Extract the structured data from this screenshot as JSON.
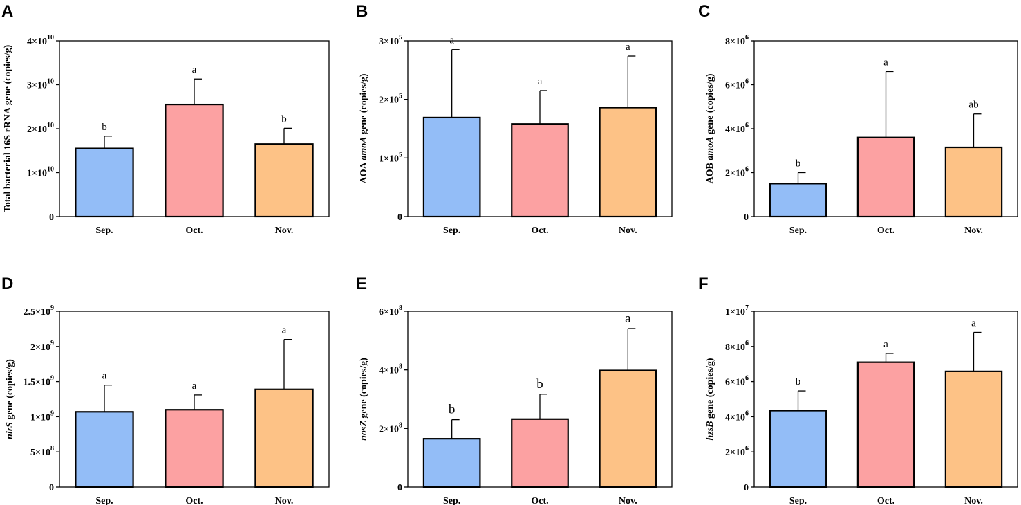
{
  "chart_data": [
    {
      "type": "bar",
      "panel": "A",
      "categories": [
        "Sep.",
        "Oct.",
        "Nov."
      ],
      "values": [
        15500000000.0,
        25500000000.0,
        16500000000.0
      ],
      "errors": [
        2800000000.0,
        5800000000.0,
        3600000000.0
      ],
      "significance": [
        "b",
        "a",
        "b"
      ],
      "ylabel_parts": [
        {
          "text": "Total bacterial 16S rRNA gene (copies/g)",
          "italic": false
        }
      ],
      "ylim": [
        0,
        40000000000.0
      ],
      "yticks": [
        0,
        10000000000.0,
        20000000000.0,
        30000000000.0,
        40000000000.0
      ],
      "ytick_labels": [
        {
          "mant": "0",
          "exp": ""
        },
        {
          "mant": "1×10",
          "exp": "10"
        },
        {
          "mant": "2×10",
          "exp": "10"
        },
        {
          "mant": "3×10",
          "exp": "10"
        },
        {
          "mant": "4×10",
          "exp": "10"
        }
      ]
    },
    {
      "type": "bar",
      "panel": "B",
      "categories": [
        "Sep.",
        "Oct.",
        "Nov."
      ],
      "values": [
        169000.0,
        158000.0,
        186000.0
      ],
      "errors": [
        116000.0,
        57000.0,
        88000.0
      ],
      "significance": [
        "a",
        "a",
        "a"
      ],
      "ylabel_parts": [
        {
          "text": "AOA  ",
          "italic": false
        },
        {
          "text": "amoA",
          "italic": true
        },
        {
          "text": " gene (copies/g)",
          "italic": false
        }
      ],
      "ylim": [
        0,
        300000.0
      ],
      "yticks": [
        0,
        100000.0,
        200000.0,
        300000.0
      ],
      "ytick_labels": [
        {
          "mant": "0",
          "exp": ""
        },
        {
          "mant": "1×10",
          "exp": "5"
        },
        {
          "mant": "2×10",
          "exp": "5"
        },
        {
          "mant": "3×10",
          "exp": "5"
        }
      ]
    },
    {
      "type": "bar",
      "panel": "C",
      "categories": [
        "Sep.",
        "Oct.",
        "Nov."
      ],
      "values": [
        1500000.0,
        3600000.0,
        3150000.0
      ],
      "errors": [
        500000.0,
        3000000.0,
        1520000.0
      ],
      "significance": [
        "b",
        "a",
        "ab"
      ],
      "ylabel_parts": [
        {
          "text": "AOB ",
          "italic": false
        },
        {
          "text": "amoA",
          "italic": true
        },
        {
          "text": " gene (copies/g)",
          "italic": false
        }
      ],
      "ylim": [
        0,
        8000000.0
      ],
      "yticks": [
        0,
        2000000.0,
        4000000.0,
        6000000.0,
        8000000.0
      ],
      "ytick_labels": [
        {
          "mant": "0",
          "exp": ""
        },
        {
          "mant": "2×10",
          "exp": "6"
        },
        {
          "mant": "4×10",
          "exp": "6"
        },
        {
          "mant": "6×10",
          "exp": "6"
        },
        {
          "mant": "8×10",
          "exp": "6"
        }
      ]
    },
    {
      "type": "bar",
      "panel": "D",
      "categories": [
        "Sep.",
        "Oct.",
        "Nov."
      ],
      "values": [
        1070000000.0,
        1100000000.0,
        1390000000.0
      ],
      "errors": [
        380000000.0,
        210000000.0,
        710000000.0
      ],
      "significance": [
        "a",
        "a",
        "a"
      ],
      "ylabel_parts": [
        {
          "text": "nirS",
          "italic": true
        },
        {
          "text": "  gene (copies/g)",
          "italic": false
        }
      ],
      "ylim": [
        0,
        2500000000.0
      ],
      "yticks": [
        0,
        500000000.0,
        1000000000.0,
        1500000000.0,
        2000000000.0,
        2500000000.0
      ],
      "ytick_labels": [
        {
          "mant": "0",
          "exp": ""
        },
        {
          "mant": "5×10",
          "exp": "8"
        },
        {
          "mant": "1×10",
          "exp": "9"
        },
        {
          "mant": "1.5×10",
          "exp": "9"
        },
        {
          "mant": "2×10",
          "exp": "9"
        },
        {
          "mant": "2.5×10",
          "exp": "9"
        }
      ]
    },
    {
      "type": "bar",
      "panel": "E",
      "categories": [
        "Sep.",
        "Oct.",
        "Nov."
      ],
      "values": [
        165000000.0,
        232000000.0,
        398000000.0
      ],
      "errors": [
        65000000.0,
        85000000.0,
        143000000.0
      ],
      "significance": [
        "b",
        "b",
        "a"
      ],
      "ylabel_parts": [
        {
          "text": "nosZ",
          "italic": true
        },
        {
          "text": "  gene (copies/g)",
          "italic": false
        }
      ],
      "ylim": [
        0,
        600000000.0
      ],
      "yticks": [
        0,
        200000000.0,
        400000000.0,
        600000000.0
      ],
      "ytick_labels": [
        {
          "mant": "0",
          "exp": ""
        },
        {
          "mant": "2×10",
          "exp": "8"
        },
        {
          "mant": "4×10",
          "exp": "8"
        },
        {
          "mant": "6×10",
          "exp": "8"
        }
      ]
    },
    {
      "type": "bar",
      "panel": "F",
      "categories": [
        "Sep.",
        "Oct.",
        "Nov."
      ],
      "values": [
        4350000.0,
        7100000.0,
        6580000.0
      ],
      "errors": [
        1120000.0,
        500000.0,
        2220000.0
      ],
      "significance": [
        "b",
        "a",
        "a"
      ],
      "ylabel_parts": [
        {
          "text": "hzsB",
          "italic": true
        },
        {
          "text": " gene (copies/g)",
          "italic": false
        }
      ],
      "ylim": [
        0,
        10000000.0
      ],
      "yticks": [
        0,
        2000000.0,
        4000000.0,
        6000000.0,
        8000000.0,
        10000000.0
      ],
      "ytick_labels": [
        {
          "mant": "0",
          "exp": ""
        },
        {
          "mant": "2×10",
          "exp": "6"
        },
        {
          "mant": "4×10",
          "exp": "6"
        },
        {
          "mant": "6×10",
          "exp": "6"
        },
        {
          "mant": "8×10",
          "exp": "6"
        },
        {
          "mant": "1×10",
          "exp": "7"
        }
      ]
    }
  ],
  "bar_colors": [
    "#93bdf7",
    "#fca1a2",
    "#fdc286"
  ],
  "bar_stroke": "#000000"
}
